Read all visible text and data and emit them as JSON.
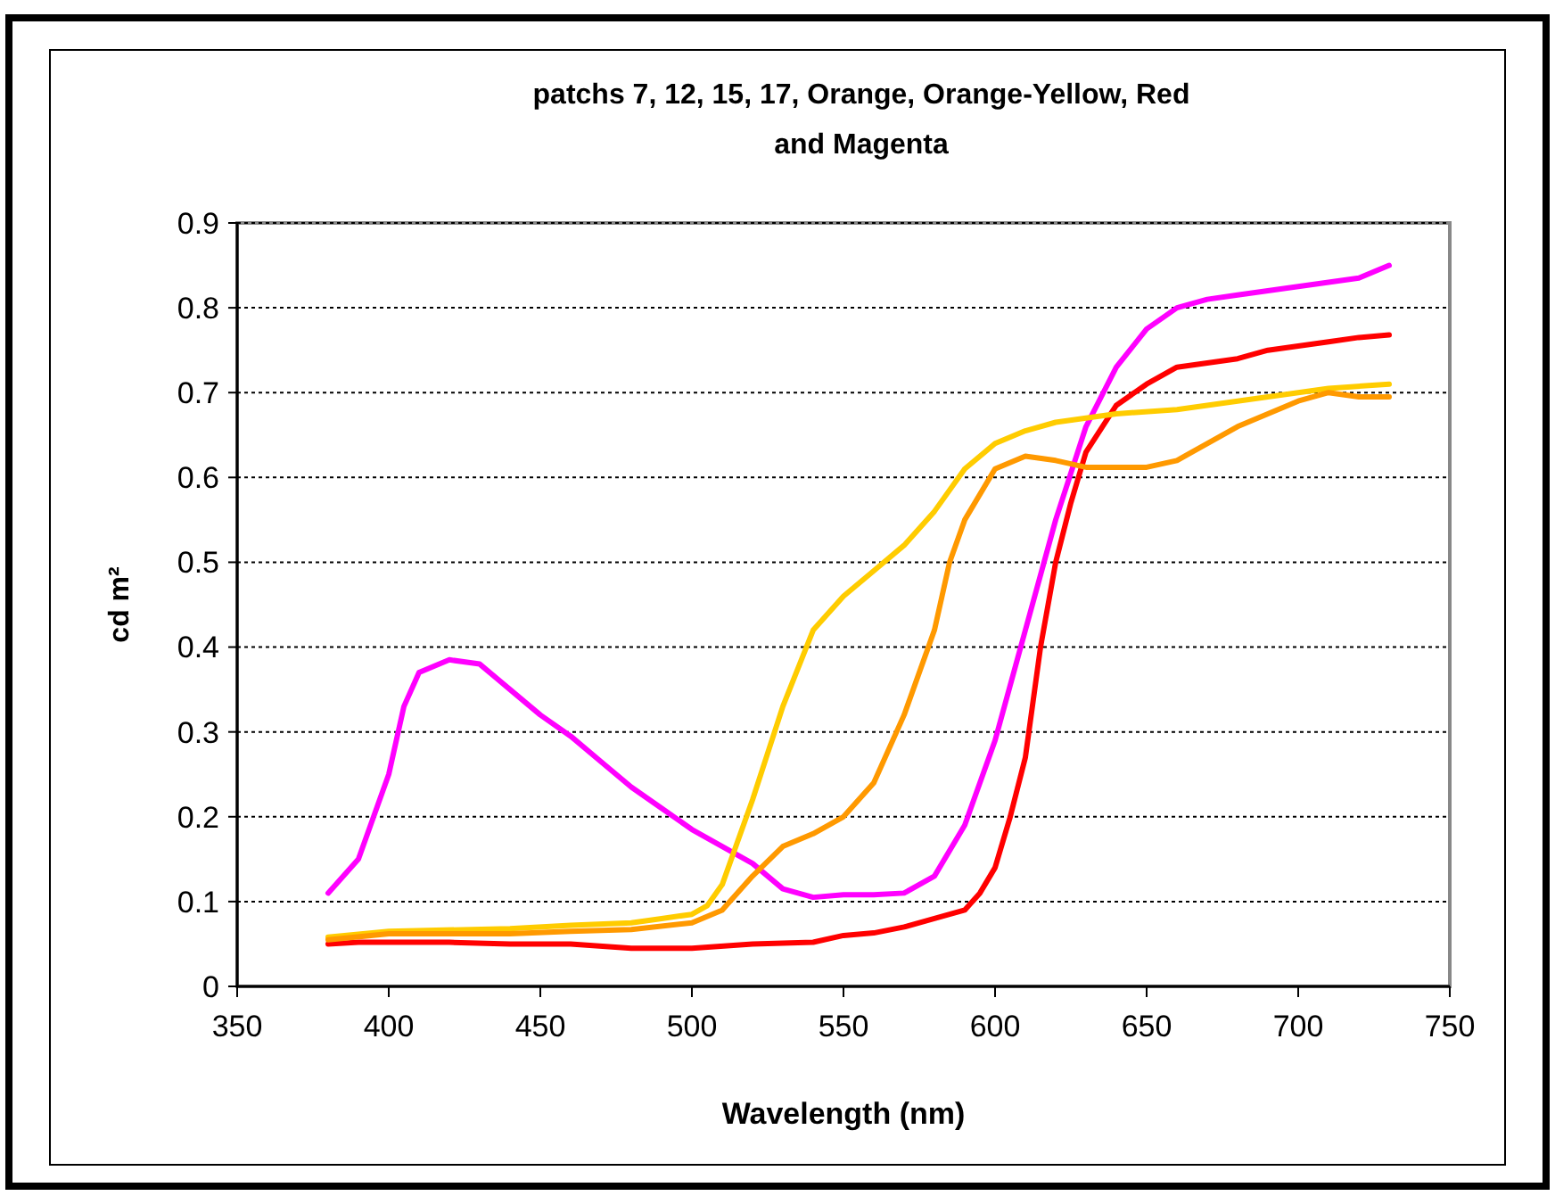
{
  "chart_data": {
    "type": "line",
    "title": "patchs 7, 12, 15, 17,  Orange, Orange-Yellow, Red and Magenta",
    "xlabel": "Wavelength (nm)",
    "ylabel": "cd m²",
    "xlim": [
      350,
      750
    ],
    "xticks": [
      350,
      400,
      450,
      500,
      550,
      600,
      650,
      700,
      750
    ],
    "ylim": [
      0,
      0.9
    ],
    "yticks": [
      0,
      0.1,
      0.2,
      0.3,
      0.4,
      0.5,
      0.6,
      0.7,
      0.8,
      0.9
    ],
    "grid": "y",
    "marker": "none",
    "line_style": "solid",
    "series": [
      {
        "color": "#ff00ff",
        "x": [
          380,
          390,
          400,
          405,
          410,
          420,
          430,
          440,
          450,
          460,
          470,
          480,
          490,
          500,
          510,
          520,
          530,
          540,
          550,
          560,
          570,
          580,
          590,
          600,
          610,
          620,
          630,
          640,
          650,
          660,
          670,
          680,
          690,
          700,
          710,
          720,
          730
        ],
        "values": [
          0.11,
          0.15,
          0.25,
          0.33,
          0.37,
          0.385,
          0.38,
          0.35,
          0.32,
          0.295,
          0.265,
          0.235,
          0.21,
          0.185,
          0.165,
          0.145,
          0.115,
          0.105,
          0.108,
          0.108,
          0.11,
          0.13,
          0.19,
          0.29,
          0.42,
          0.55,
          0.66,
          0.73,
          0.775,
          0.8,
          0.81,
          0.815,
          0.82,
          0.825,
          0.83,
          0.835,
          0.85
        ]
      },
      {
        "color": "#ff0000",
        "x": [
          380,
          390,
          420,
          440,
          460,
          480,
          500,
          520,
          540,
          550,
          560,
          570,
          580,
          590,
          595,
          600,
          605,
          610,
          615,
          620,
          625,
          630,
          640,
          650,
          660,
          670,
          680,
          690,
          700,
          710,
          720,
          730
        ],
        "values": [
          0.05,
          0.052,
          0.052,
          0.05,
          0.05,
          0.045,
          0.045,
          0.05,
          0.052,
          0.06,
          0.063,
          0.07,
          0.08,
          0.09,
          0.11,
          0.14,
          0.2,
          0.27,
          0.4,
          0.5,
          0.57,
          0.63,
          0.685,
          0.71,
          0.73,
          0.735,
          0.74,
          0.75,
          0.755,
          0.76,
          0.765,
          0.768
        ]
      },
      {
        "color": "#ffcc00",
        "x": [
          380,
          400,
          440,
          460,
          480,
          490,
          500,
          505,
          510,
          515,
          520,
          530,
          540,
          550,
          560,
          570,
          580,
          590,
          600,
          610,
          620,
          640,
          660,
          680,
          700,
          710,
          730
        ],
        "values": [
          0.058,
          0.065,
          0.068,
          0.072,
          0.075,
          0.08,
          0.085,
          0.095,
          0.12,
          0.17,
          0.22,
          0.33,
          0.42,
          0.46,
          0.49,
          0.52,
          0.56,
          0.61,
          0.64,
          0.655,
          0.665,
          0.675,
          0.68,
          0.69,
          0.7,
          0.705,
          0.71
        ]
      },
      {
        "color": "#ff9900",
        "x": [
          380,
          400,
          440,
          460,
          480,
          500,
          510,
          520,
          530,
          540,
          550,
          560,
          570,
          580,
          585,
          590,
          600,
          610,
          620,
          630,
          650,
          660,
          680,
          700,
          710,
          720,
          730
        ],
        "values": [
          0.055,
          0.062,
          0.062,
          0.065,
          0.067,
          0.075,
          0.09,
          0.13,
          0.165,
          0.18,
          0.2,
          0.24,
          0.32,
          0.42,
          0.5,
          0.55,
          0.61,
          0.625,
          0.62,
          0.612,
          0.612,
          0.62,
          0.66,
          0.69,
          0.7,
          0.695,
          0.695
        ]
      }
    ]
  }
}
